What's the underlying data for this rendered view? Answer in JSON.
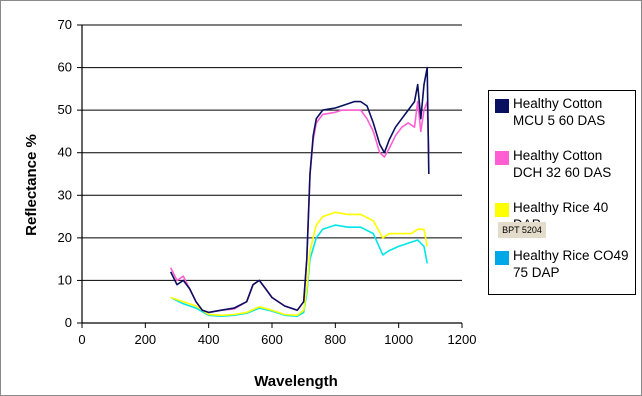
{
  "chart_data": {
    "type": "line",
    "title": "",
    "xlabel": "Wavelength",
    "ylabel": "Reflectance %",
    "xlim": [
      0,
      1200
    ],
    "ylim": [
      0,
      70
    ],
    "x_ticks": [
      0,
      200,
      400,
      600,
      800,
      1000,
      1200
    ],
    "y_ticks": [
      0,
      10,
      20,
      30,
      40,
      50,
      60,
      70
    ],
    "grid": "horizontal",
    "legend_position": "right",
    "series": [
      {
        "name": "Healthy Cotton MCU 5 60 DAS",
        "color": "#0a1060",
        "points": [
          [
            280,
            12
          ],
          [
            300,
            9
          ],
          [
            320,
            10
          ],
          [
            340,
            8
          ],
          [
            360,
            5
          ],
          [
            380,
            3
          ],
          [
            400,
            2.5
          ],
          [
            440,
            3
          ],
          [
            480,
            3.5
          ],
          [
            520,
            5
          ],
          [
            540,
            9
          ],
          [
            560,
            10
          ],
          [
            580,
            8
          ],
          [
            600,
            6
          ],
          [
            640,
            4
          ],
          [
            680,
            3
          ],
          [
            700,
            5
          ],
          [
            710,
            15
          ],
          [
            720,
            35
          ],
          [
            730,
            44
          ],
          [
            740,
            48
          ],
          [
            760,
            50
          ],
          [
            800,
            50.5
          ],
          [
            820,
            51
          ],
          [
            860,
            52
          ],
          [
            880,
            52
          ],
          [
            900,
            51
          ],
          [
            920,
            47
          ],
          [
            940,
            42
          ],
          [
            955,
            40
          ],
          [
            970,
            43
          ],
          [
            990,
            46
          ],
          [
            1010,
            48
          ],
          [
            1030,
            50
          ],
          [
            1050,
            52
          ],
          [
            1060,
            56
          ],
          [
            1070,
            48
          ],
          [
            1080,
            56
          ],
          [
            1090,
            60
          ],
          [
            1095,
            35
          ]
        ]
      },
      {
        "name": "Healthy Cotton DCH 32 60 DAS",
        "color": "#ff5fd2",
        "points": [
          [
            280,
            13
          ],
          [
            300,
            10
          ],
          [
            320,
            11
          ],
          [
            340,
            8
          ],
          [
            360,
            5
          ],
          [
            380,
            3
          ],
          [
            400,
            2.5
          ],
          [
            440,
            3
          ],
          [
            480,
            3.3
          ],
          [
            520,
            5
          ],
          [
            540,
            9
          ],
          [
            560,
            10
          ],
          [
            580,
            8
          ],
          [
            600,
            6
          ],
          [
            640,
            4
          ],
          [
            680,
            3
          ],
          [
            700,
            5
          ],
          [
            710,
            15
          ],
          [
            720,
            35
          ],
          [
            730,
            43
          ],
          [
            740,
            47
          ],
          [
            760,
            49
          ],
          [
            800,
            49.5
          ],
          [
            820,
            50
          ],
          [
            860,
            50
          ],
          [
            880,
            50
          ],
          [
            900,
            48
          ],
          [
            920,
            45
          ],
          [
            940,
            40
          ],
          [
            955,
            39
          ],
          [
            970,
            41
          ],
          [
            990,
            44
          ],
          [
            1010,
            46
          ],
          [
            1030,
            47
          ],
          [
            1050,
            46
          ],
          [
            1060,
            52
          ],
          [
            1070,
            45
          ],
          [
            1080,
            50
          ],
          [
            1090,
            52
          ],
          [
            1095,
            40
          ]
        ]
      },
      {
        "name": "Healthy Rice BPT 5204 40 DAP",
        "color": "#ffff00",
        "points": [
          [
            280,
            6
          ],
          [
            320,
            5
          ],
          [
            360,
            4
          ],
          [
            400,
            2
          ],
          [
            440,
            1.8
          ],
          [
            480,
            2
          ],
          [
            520,
            2.5
          ],
          [
            560,
            3.8
          ],
          [
            600,
            3
          ],
          [
            640,
            2
          ],
          [
            680,
            1.8
          ],
          [
            700,
            3
          ],
          [
            710,
            8
          ],
          [
            720,
            17
          ],
          [
            740,
            23
          ],
          [
            760,
            25
          ],
          [
            800,
            26
          ],
          [
            840,
            25.5
          ],
          [
            880,
            25.5
          ],
          [
            920,
            24
          ],
          [
            950,
            20
          ],
          [
            970,
            21
          ],
          [
            1000,
            21
          ],
          [
            1040,
            21
          ],
          [
            1060,
            22
          ],
          [
            1080,
            22
          ],
          [
            1090,
            18
          ]
        ]
      },
      {
        "name": "Healthy Rice CO49 75 DAP",
        "color": "#00e6e6",
        "points": [
          [
            280,
            6
          ],
          [
            320,
            4.5
          ],
          [
            360,
            3.5
          ],
          [
            400,
            1.8
          ],
          [
            440,
            1.6
          ],
          [
            480,
            1.8
          ],
          [
            520,
            2.3
          ],
          [
            560,
            3.5
          ],
          [
            600,
            2.8
          ],
          [
            640,
            1.8
          ],
          [
            680,
            1.6
          ],
          [
            700,
            2.5
          ],
          [
            710,
            7
          ],
          [
            720,
            15
          ],
          [
            740,
            20
          ],
          [
            760,
            22
          ],
          [
            800,
            23
          ],
          [
            840,
            22.5
          ],
          [
            880,
            22.5
          ],
          [
            920,
            21
          ],
          [
            950,
            16
          ],
          [
            970,
            17
          ],
          [
            1000,
            18
          ],
          [
            1040,
            19
          ],
          [
            1060,
            19.5
          ],
          [
            1080,
            18
          ],
          [
            1090,
            14
          ]
        ]
      }
    ]
  },
  "legend": {
    "items": [
      {
        "label": "Healthy Cotton MCU 5 60 DAS",
        "color": "#0a1060"
      },
      {
        "label": "Healthy Cotton DCH 32 60 DAS",
        "color": "#ff5fd2"
      },
      {
        "label": "Healthy Rice 40 DAP",
        "color": "#ffff00"
      },
      {
        "label": "Healthy Rice CO49 75 DAP",
        "color": "#00a8e8"
      }
    ],
    "overlay_label": "BPT 5204"
  }
}
